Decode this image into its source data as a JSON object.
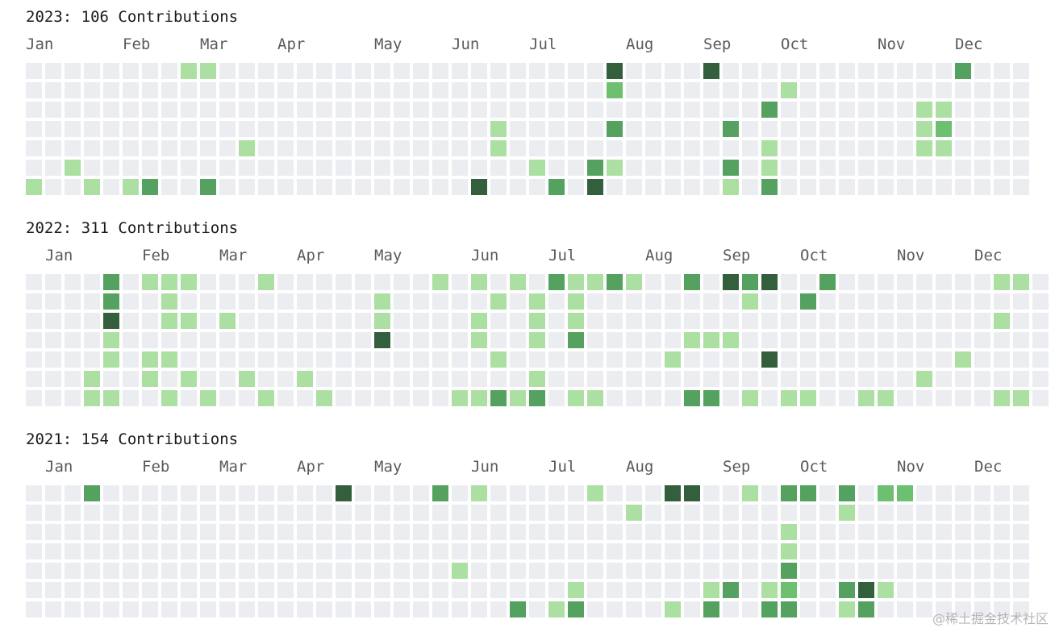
{
  "colors": {
    "0": "#ebedf0",
    "1": "#acdfa2",
    "2": "#6cc070",
    "3": "#55a160",
    "4": "#335f3c"
  },
  "watermark": "@稀土掘金技术社区",
  "chart_data": [
    {
      "type": "heatmap",
      "title": "2023: 106 Contributions",
      "year": 2023,
      "rows": 7,
      "columns": 52,
      "month_labels": [
        {
          "label": "Jan",
          "col": 0
        },
        {
          "label": "Feb",
          "col": 5
        },
        {
          "label": "Mar",
          "col": 9
        },
        {
          "label": "Apr",
          "col": 13
        },
        {
          "label": "May",
          "col": 18
        },
        {
          "label": "Jun",
          "col": 22
        },
        {
          "label": "Jul",
          "col": 26
        },
        {
          "label": "Aug",
          "col": 31
        },
        {
          "label": "Sep",
          "col": 35
        },
        {
          "label": "Oct",
          "col": 39
        },
        {
          "label": "Nov",
          "col": 44
        },
        {
          "label": "Dec",
          "col": 48
        }
      ],
      "cells": [
        [
          8,
          0,
          1
        ],
        [
          9,
          0,
          1
        ],
        [
          30,
          0,
          4
        ],
        [
          35,
          0,
          4
        ],
        [
          48,
          0,
          3
        ],
        [
          30,
          1,
          2
        ],
        [
          39,
          1,
          1
        ],
        [
          38,
          2,
          3
        ],
        [
          46,
          2,
          1
        ],
        [
          47,
          2,
          1
        ],
        [
          24,
          3,
          1
        ],
        [
          30,
          3,
          3
        ],
        [
          36,
          3,
          3
        ],
        [
          46,
          3,
          1
        ],
        [
          47,
          3,
          2
        ],
        [
          11,
          4,
          1
        ],
        [
          24,
          4,
          1
        ],
        [
          38,
          4,
          1
        ],
        [
          46,
          4,
          1
        ],
        [
          47,
          4,
          1
        ],
        [
          2,
          5,
          1
        ],
        [
          26,
          5,
          1
        ],
        [
          29,
          5,
          3
        ],
        [
          30,
          5,
          1
        ],
        [
          36,
          5,
          3
        ],
        [
          38,
          5,
          1
        ],
        [
          0,
          6,
          1
        ],
        [
          3,
          6,
          1
        ],
        [
          5,
          6,
          1
        ],
        [
          6,
          6,
          3
        ],
        [
          9,
          6,
          3
        ],
        [
          23,
          6,
          4
        ],
        [
          27,
          6,
          3
        ],
        [
          29,
          6,
          4
        ],
        [
          36,
          6,
          1
        ],
        [
          38,
          6,
          3
        ]
      ]
    },
    {
      "type": "heatmap",
      "title": "2022: 311 Contributions",
      "year": 2022,
      "rows": 7,
      "columns": 53,
      "month_labels": [
        {
          "label": "Jan",
          "col": 1
        },
        {
          "label": "Feb",
          "col": 6
        },
        {
          "label": "Mar",
          "col": 10
        },
        {
          "label": "Apr",
          "col": 14
        },
        {
          "label": "May",
          "col": 18
        },
        {
          "label": "Jun",
          "col": 23
        },
        {
          "label": "Jul",
          "col": 27
        },
        {
          "label": "Aug",
          "col": 32
        },
        {
          "label": "Sep",
          "col": 36
        },
        {
          "label": "Oct",
          "col": 40
        },
        {
          "label": "Nov",
          "col": 45
        },
        {
          "label": "Dec",
          "col": 49
        }
      ],
      "cells": [
        [
          4,
          0,
          3
        ],
        [
          6,
          0,
          1
        ],
        [
          7,
          0,
          1
        ],
        [
          8,
          0,
          1
        ],
        [
          12,
          0,
          1
        ],
        [
          21,
          0,
          1
        ],
        [
          23,
          0,
          1
        ],
        [
          25,
          0,
          1
        ],
        [
          27,
          0,
          3
        ],
        [
          28,
          0,
          1
        ],
        [
          29,
          0,
          1
        ],
        [
          30,
          0,
          3
        ],
        [
          31,
          0,
          1
        ],
        [
          34,
          0,
          3
        ],
        [
          36,
          0,
          4
        ],
        [
          37,
          0,
          3
        ],
        [
          38,
          0,
          4
        ],
        [
          41,
          0,
          3
        ],
        [
          50,
          0,
          1
        ],
        [
          51,
          0,
          1
        ],
        [
          4,
          1,
          3
        ],
        [
          7,
          1,
          1
        ],
        [
          18,
          1,
          1
        ],
        [
          24,
          1,
          1
        ],
        [
          26,
          1,
          1
        ],
        [
          28,
          1,
          1
        ],
        [
          37,
          1,
          1
        ],
        [
          40,
          1,
          3
        ],
        [
          4,
          2,
          4
        ],
        [
          7,
          2,
          1
        ],
        [
          8,
          2,
          1
        ],
        [
          10,
          2,
          1
        ],
        [
          18,
          2,
          1
        ],
        [
          23,
          2,
          1
        ],
        [
          26,
          2,
          1
        ],
        [
          28,
          2,
          1
        ],
        [
          50,
          2,
          1
        ],
        [
          4,
          3,
          1
        ],
        [
          18,
          3,
          4
        ],
        [
          23,
          3,
          1
        ],
        [
          26,
          3,
          1
        ],
        [
          28,
          3,
          3
        ],
        [
          34,
          3,
          1
        ],
        [
          35,
          3,
          1
        ],
        [
          36,
          3,
          1
        ],
        [
          4,
          4,
          1
        ],
        [
          6,
          4,
          1
        ],
        [
          7,
          4,
          1
        ],
        [
          24,
          4,
          1
        ],
        [
          33,
          4,
          1
        ],
        [
          38,
          4,
          4
        ],
        [
          48,
          4,
          1
        ],
        [
          3,
          5,
          1
        ],
        [
          6,
          5,
          1
        ],
        [
          8,
          5,
          1
        ],
        [
          11,
          5,
          1
        ],
        [
          14,
          5,
          1
        ],
        [
          26,
          5,
          1
        ],
        [
          46,
          5,
          1
        ],
        [
          3,
          6,
          1
        ],
        [
          4,
          6,
          1
        ],
        [
          7,
          6,
          1
        ],
        [
          9,
          6,
          1
        ],
        [
          12,
          6,
          1
        ],
        [
          15,
          6,
          1
        ],
        [
          22,
          6,
          1
        ],
        [
          23,
          6,
          1
        ],
        [
          24,
          6,
          3
        ],
        [
          25,
          6,
          1
        ],
        [
          26,
          6,
          3
        ],
        [
          28,
          6,
          1
        ],
        [
          29,
          6,
          1
        ],
        [
          34,
          6,
          3
        ],
        [
          35,
          6,
          3
        ],
        [
          37,
          6,
          1
        ],
        [
          39,
          6,
          1
        ],
        [
          40,
          6,
          1
        ],
        [
          43,
          6,
          1
        ],
        [
          44,
          6,
          1
        ],
        [
          50,
          6,
          1
        ],
        [
          51,
          6,
          1
        ]
      ]
    },
    {
      "type": "heatmap",
      "title": "2021: 154 Contributions",
      "year": 2021,
      "rows": 7,
      "columns": 52,
      "month_labels": [
        {
          "label": "Jan",
          "col": 1
        },
        {
          "label": "Feb",
          "col": 6
        },
        {
          "label": "Mar",
          "col": 10
        },
        {
          "label": "Apr",
          "col": 14
        },
        {
          "label": "May",
          "col": 18
        },
        {
          "label": "Jun",
          "col": 23
        },
        {
          "label": "Jul",
          "col": 27
        },
        {
          "label": "Aug",
          "col": 31
        },
        {
          "label": "Sep",
          "col": 36
        },
        {
          "label": "Oct",
          "col": 40
        },
        {
          "label": "Nov",
          "col": 45
        },
        {
          "label": "Dec",
          "col": 49
        }
      ],
      "cells": [
        [
          3,
          0,
          3
        ],
        [
          16,
          0,
          4
        ],
        [
          21,
          0,
          3
        ],
        [
          23,
          0,
          1
        ],
        [
          29,
          0,
          1
        ],
        [
          33,
          0,
          4
        ],
        [
          34,
          0,
          4
        ],
        [
          37,
          0,
          1
        ],
        [
          39,
          0,
          3
        ],
        [
          40,
          0,
          3
        ],
        [
          42,
          0,
          3
        ],
        [
          44,
          0,
          2
        ],
        [
          45,
          0,
          2
        ],
        [
          31,
          1,
          1
        ],
        [
          42,
          1,
          1
        ],
        [
          39,
          2,
          1
        ],
        [
          39,
          3,
          1
        ],
        [
          22,
          4,
          1
        ],
        [
          39,
          4,
          3
        ],
        [
          28,
          5,
          1
        ],
        [
          35,
          5,
          1
        ],
        [
          36,
          5,
          3
        ],
        [
          38,
          5,
          1
        ],
        [
          39,
          5,
          2
        ],
        [
          42,
          5,
          3
        ],
        [
          43,
          5,
          4
        ],
        [
          44,
          5,
          1
        ],
        [
          25,
          6,
          3
        ],
        [
          27,
          6,
          1
        ],
        [
          28,
          6,
          3
        ],
        [
          33,
          6,
          1
        ],
        [
          35,
          6,
          3
        ],
        [
          38,
          6,
          3
        ],
        [
          39,
          6,
          3
        ],
        [
          42,
          6,
          1
        ],
        [
          43,
          6,
          3
        ]
      ]
    }
  ]
}
